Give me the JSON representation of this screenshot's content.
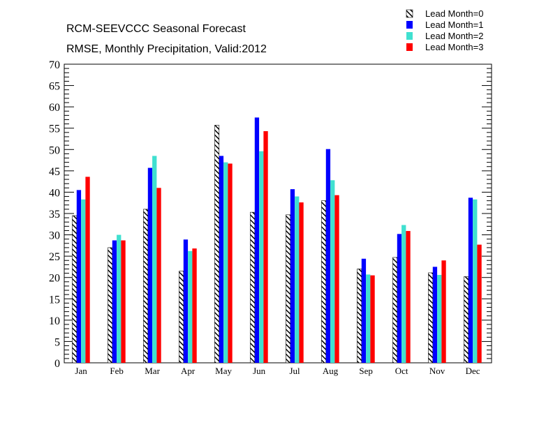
{
  "title": "RCM-SEEVCCC Seasonal Forecast",
  "subtitle": "RMSE, Monthly Precipitation, Valid:2012",
  "chart_data": {
    "type": "bar",
    "title": "RCM-SEEVCCC Seasonal Forecast",
    "subtitle": "RMSE, Monthly Precipitation, Valid:2012",
    "xlabel": "",
    "ylabel": "",
    "ylim": [
      0,
      70
    ],
    "yticks": [
      "0",
      "5",
      "10",
      "15",
      "20",
      "25",
      "30",
      "35",
      "40",
      "45",
      "50",
      "55",
      "60",
      "65",
      "70"
    ],
    "grid": false,
    "legend_position": "top-right",
    "categories": [
      "Jan",
      "Feb",
      "Mar",
      "Apr",
      "May",
      "Jun",
      "Jul",
      "Aug",
      "Sep",
      "Oct",
      "Nov",
      "Dec"
    ],
    "series": [
      {
        "name": "Lead Month=0",
        "color": "#000000",
        "pattern": "hatched",
        "values": [
          34.5,
          27.0,
          36.0,
          21.5,
          55.7,
          35.3,
          34.7,
          38.0,
          22.0,
          24.7,
          21.1,
          20.2
        ]
      },
      {
        "name": "Lead Month=1",
        "color": "#0000ff",
        "pattern": "solid",
        "values": [
          40.5,
          28.7,
          45.7,
          28.9,
          48.5,
          57.5,
          40.7,
          50.1,
          24.4,
          30.2,
          22.5,
          38.7
        ]
      },
      {
        "name": "Lead Month=2",
        "color": "#40e0d0",
        "pattern": "solid",
        "values": [
          38.3,
          30.0,
          48.5,
          26.2,
          47.0,
          49.6,
          39.0,
          42.8,
          20.7,
          32.3,
          20.6,
          38.3
        ]
      },
      {
        "name": "Lead Month=3",
        "color": "#ff0000",
        "pattern": "solid",
        "values": [
          43.6,
          28.7,
          41.0,
          26.8,
          46.7,
          54.3,
          37.6,
          39.3,
          20.5,
          30.9,
          24.0,
          27.7
        ]
      }
    ]
  }
}
